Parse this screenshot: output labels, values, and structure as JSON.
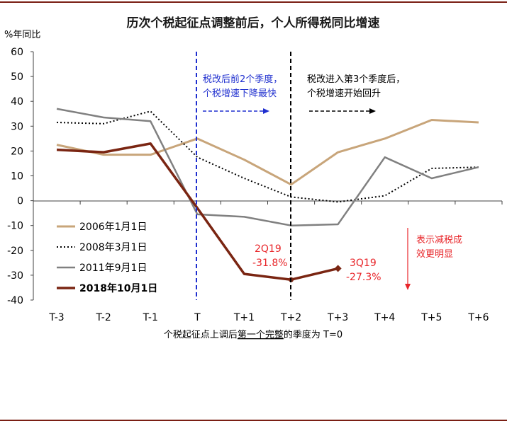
{
  "chart_data": {
    "type": "line",
    "title": "历次个税起征点调整前后，个人所得税同比增速",
    "ylabel": "%年同比",
    "xlabel_parts": [
      "个税起征点上调后",
      "第一个完整",
      "的季度为 T=0"
    ],
    "categories": [
      "T-3",
      "T-2",
      "T-1",
      "T",
      "T+1",
      "T+2",
      "T+3",
      "T+4",
      "T+5",
      "T+6"
    ],
    "ylim": [
      -40,
      60
    ],
    "yticks": [
      -40,
      -30,
      -20,
      -10,
      0,
      10,
      20,
      30,
      40,
      50,
      60
    ],
    "grid": false,
    "legend_position": "bottom-left",
    "series": [
      {
        "name": "2006年1月1日",
        "color": "#c8a57a",
        "style": "solid",
        "width": 3,
        "values": [
          22.5,
          18.5,
          18.5,
          25,
          16.5,
          6.5,
          19.5,
          25,
          32.5,
          31.5
        ]
      },
      {
        "name": "2008年3月1日",
        "color": "#000000",
        "style": "dotted",
        "width": 2,
        "values": [
          31.5,
          31,
          36,
          17.5,
          9,
          1.5,
          -0.5,
          2,
          13,
          13.5
        ]
      },
      {
        "name": "2011年9月1日",
        "color": "#808080",
        "style": "solid",
        "width": 2.5,
        "values": [
          37,
          33.5,
          32,
          -5.5,
          -6.5,
          -10,
          -9.5,
          17.5,
          9,
          13.5
        ]
      },
      {
        "name": "2018年10月1日",
        "color": "#7a2512",
        "style": "solid",
        "width": 3.5,
        "bold": true,
        "values": [
          20.5,
          19.5,
          23,
          -3,
          -29.5,
          -31.8,
          -27.3,
          null,
          null,
          null
        ]
      }
    ],
    "annotations": {
      "blue_line": [
        "税改后前2个季度，",
        "个税增速下降最快"
      ],
      "black_line": [
        "税改进入第3个季度后，",
        "个税增速开始回升"
      ],
      "q2_label": [
        "2Q19",
        "-31.8%"
      ],
      "q3_label": [
        "3Q19",
        "-27.3%"
      ],
      "red_note": [
        "表示减税成",
        "效更明显"
      ]
    }
  },
  "colors": {
    "border": "#7a1f14",
    "blue": "#1f2fcf",
    "red": "#e8262a",
    "axis": "#404040"
  }
}
